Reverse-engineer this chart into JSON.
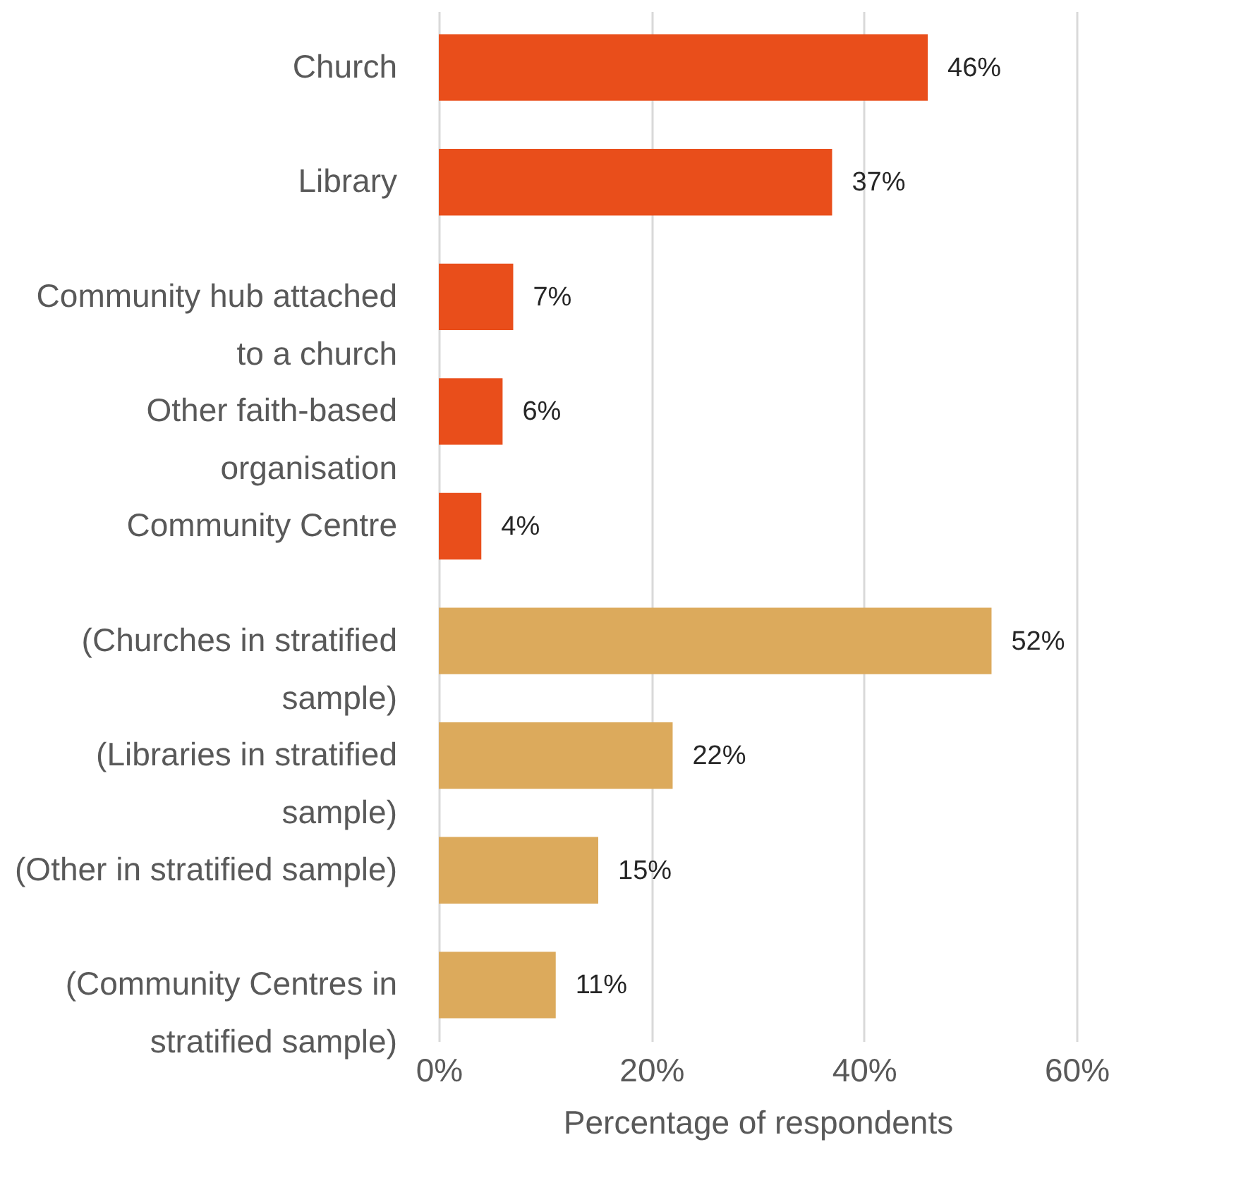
{
  "chart_data": {
    "type": "bar",
    "orientation": "horizontal",
    "xlabel": "Percentage of respondents",
    "categories": [
      "Church",
      "Library",
      "Community hub attached\nto a church",
      "Other faith-based\norganisation",
      "Community Centre",
      "(Churches in stratified\nsample)",
      "(Libraries in stratified\nsample)",
      "(Other in stratified sample)",
      "(Community Centres in\nstratified sample)"
    ],
    "values": [
      46,
      37,
      7,
      6,
      4,
      52,
      22,
      15,
      11
    ],
    "colors": [
      "#e94e1b",
      "#e94e1b",
      "#e94e1b",
      "#e94e1b",
      "#e94e1b",
      "#dcaa5c",
      "#dcaa5c",
      "#dcaa5c",
      "#dcaa5c"
    ],
    "value_labels": [
      "46%",
      "37%",
      "7%",
      "6%",
      "4%",
      "52%",
      "22%",
      "15%",
      "11%"
    ],
    "xlim": [
      0,
      60
    ],
    "xticks": [
      {
        "value": 0,
        "label": "0%"
      },
      {
        "value": 20,
        "label": "20%"
      },
      {
        "value": 40,
        "label": "40%"
      },
      {
        "value": 60,
        "label": "60%"
      }
    ],
    "grid": "x"
  }
}
